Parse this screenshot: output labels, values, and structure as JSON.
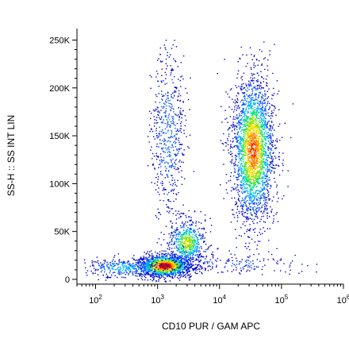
{
  "chart_data": {
    "type": "scatter",
    "style": "flow-cytometry density dot plot (pseudocolor)",
    "xlabel": "CD10 PUR / GAM APC",
    "ylabel": "SS-H :: SS INT LIN",
    "x_scale": "log",
    "y_scale": "linear",
    "xlim": [
      50,
      1000000
    ],
    "ylim": [
      -5000,
      262000
    ],
    "x_ticks": [
      {
        "value": 100,
        "base": "10",
        "exp": "2"
      },
      {
        "value": 1000,
        "base": "10",
        "exp": "3"
      },
      {
        "value": 10000,
        "base": "10",
        "exp": "4"
      },
      {
        "value": 100000,
        "base": "10",
        "exp": "5"
      },
      {
        "value": 1000000,
        "base": "10",
        "exp": "6"
      }
    ],
    "y_ticks": [
      {
        "value": 0,
        "label": "0"
      },
      {
        "value": 50000,
        "label": "50K"
      },
      {
        "value": 100000,
        "label": "100K"
      },
      {
        "value": 150000,
        "label": "150K"
      },
      {
        "value": 200000,
        "label": "200K"
      },
      {
        "value": 250000,
        "label": "250K"
      }
    ],
    "density_colors": [
      "#0000cc",
      "#0050ff",
      "#00b4ff",
      "#00e070",
      "#80e000",
      "#f0e000",
      "#ff8000",
      "#e00000"
    ],
    "populations": [
      {
        "x_center": 1300,
        "x_spread_log10": 0.22,
        "y_center": 14000,
        "y_spread": 6000,
        "count": 1500,
        "peak_density": 1.0
      },
      {
        "x_center": 3000,
        "x_spread_log10": 0.15,
        "y_center": 38000,
        "y_spread": 12000,
        "count": 600,
        "peak_density": 0.6
      },
      {
        "x_center": 1500,
        "x_spread_log10": 0.14,
        "y_center": 150000,
        "y_spread": 45000,
        "count": 550,
        "peak_density": 0.2
      },
      {
        "x_center": 35000,
        "x_spread_log10": 0.17,
        "y_center": 135000,
        "y_spread": 38000,
        "count": 2600,
        "peak_density": 0.85
      },
      {
        "x_center": 300,
        "x_spread_log10": 0.35,
        "y_center": 12000,
        "y_spread": 5000,
        "count": 350,
        "peak_density": 0.3
      },
      {
        "x_center": 15000,
        "x_spread_log10": 0.6,
        "y_center": 16000,
        "y_spread": 6000,
        "count": 180,
        "peak_density": 0.1
      }
    ]
  }
}
